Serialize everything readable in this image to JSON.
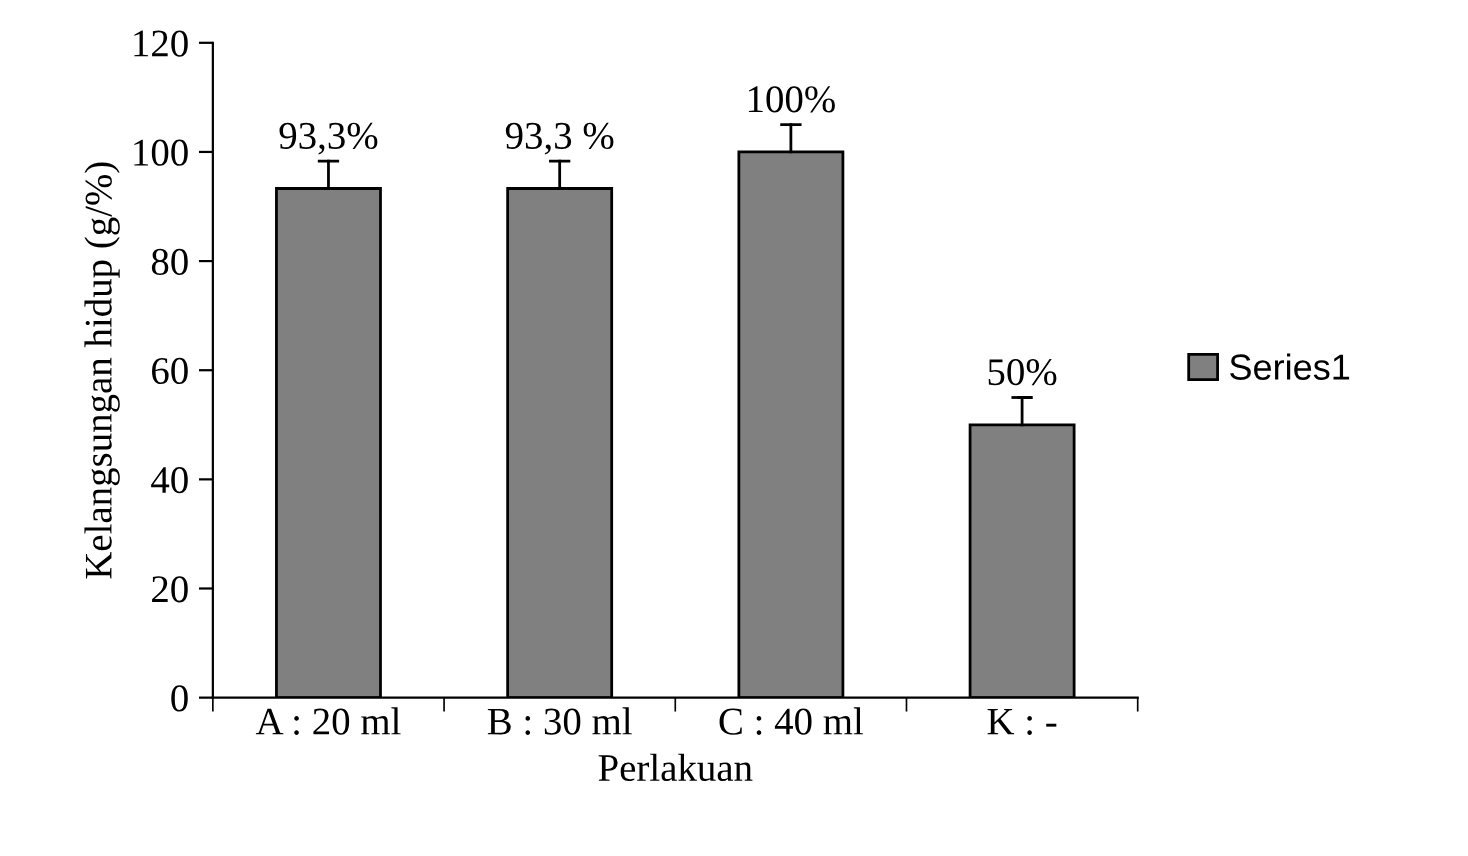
{
  "chart_data": {
    "type": "bar",
    "xlabel": "Perlakuan",
    "ylabel": "Kelangsungan hidup (g/%)",
    "categories": [
      "A : 20 ml",
      "B : 30 ml",
      "C : 40 ml",
      "K : -"
    ],
    "series": [
      {
        "name": "Series1",
        "color": "#808080",
        "values": [
          93.3,
          93.3,
          100,
          50
        ],
        "errors": [
          [
            93.3,
            98.3
          ],
          [
            93.3,
            98.3
          ],
          [
            100,
            105
          ],
          [
            50,
            55
          ]
        ],
        "value_labels": [
          "93,3%",
          "93,3 %",
          "100%",
          "50%"
        ]
      }
    ],
    "ylim": [
      0,
      120
    ],
    "yticks": [
      0,
      20,
      40,
      60,
      80,
      100,
      120
    ],
    "grid": false,
    "legend": "right"
  }
}
